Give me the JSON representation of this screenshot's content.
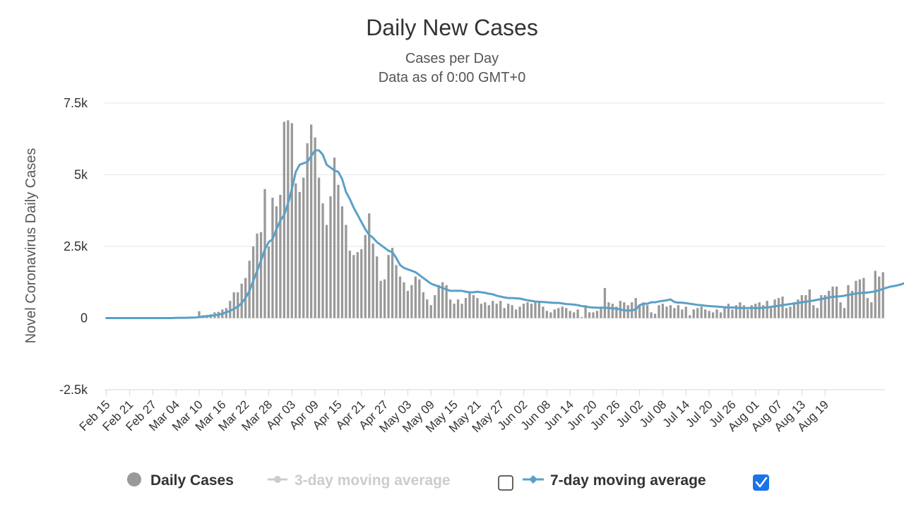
{
  "chart_data": {
    "type": "bar",
    "title": "Daily New Cases",
    "subtitle_lines": [
      "Cases per Day",
      "Data as of 0:00 GMT+0"
    ],
    "ylabel": "Novel Coronavirus Daily Cases",
    "xlabel": "",
    "ylim": [
      -2500,
      7500
    ],
    "yticks": [
      {
        "value": 7500,
        "label": "7.5k"
      },
      {
        "value": 5000,
        "label": "5k"
      },
      {
        "value": 2500,
        "label": "2.5k"
      },
      {
        "value": 0,
        "label": "0"
      },
      {
        "value": -2500,
        "label": "-2.5k"
      }
    ],
    "x_tick_labels": [
      "Feb 15",
      "Feb 21",
      "Feb 27",
      "Mar 04",
      "Mar 10",
      "Mar 16",
      "Mar 22",
      "Mar 28",
      "Apr 03",
      "Apr 09",
      "Apr 15",
      "Apr 21",
      "Apr 27",
      "May 03",
      "May 09",
      "May 15",
      "May 21",
      "May 27",
      "Jun 02",
      "Jun 08",
      "Jun 14",
      "Jun 20",
      "Jun 26",
      "Jul 02",
      "Jul 08",
      "Jul 14",
      "Jul 20",
      "Jul 26",
      "Aug 01",
      "Aug 07",
      "Aug 13",
      "Aug 19"
    ],
    "grid": true,
    "legend_position": "bottom",
    "series": [
      {
        "name": "Daily Cases",
        "kind": "bar",
        "color": "#999999",
        "start_date": "Feb 15",
        "values": [
          0,
          0,
          0,
          0,
          0,
          0,
          0,
          0,
          0,
          0,
          0,
          0,
          0,
          0,
          0,
          0,
          0,
          0,
          10,
          15,
          20,
          25,
          40,
          50,
          240,
          100,
          110,
          130,
          200,
          220,
          300,
          350,
          600,
          900,
          900,
          1200,
          1400,
          2000,
          2500,
          2950,
          3000,
          4500,
          2500,
          4200,
          3900,
          4300,
          6850,
          6900,
          6800,
          4700,
          4400,
          4900,
          6100,
          6750,
          6300,
          4900,
          4000,
          3250,
          4250,
          5600,
          4650,
          3900,
          3250,
          2350,
          2200,
          2300,
          2400,
          2900,
          3650,
          2600,
          2150,
          1300,
          1350,
          2200,
          2450,
          1850,
          1450,
          1250,
          950,
          1150,
          1450,
          1350,
          900,
          650,
          450,
          800,
          1150,
          1250,
          1150,
          650,
          500,
          650,
          500,
          700,
          900,
          800,
          700,
          500,
          550,
          450,
          600,
          500,
          600,
          350,
          500,
          450,
          300,
          400,
          500,
          550,
          500,
          600,
          550,
          400,
          250,
          200,
          300,
          350,
          400,
          350,
          250,
          200,
          300,
          30,
          450,
          200,
          200,
          250,
          400,
          1050,
          550,
          500,
          400,
          600,
          550,
          450,
          550,
          700,
          450,
          550,
          450,
          200,
          150,
          450,
          500,
          400,
          450,
          350,
          450,
          300,
          400,
          100,
          300,
          350,
          400,
          300,
          250,
          200,
          300,
          200,
          350,
          500,
          300,
          450,
          550,
          450,
          300,
          450,
          500,
          550,
          450,
          600,
          350,
          650,
          700,
          750,
          350,
          400,
          550,
          650,
          800,
          800,
          1000,
          450,
          350,
          800,
          800,
          950,
          1100,
          1100,
          550,
          350,
          1150,
          950,
          1300,
          1350,
          1400,
          700,
          550,
          1650,
          1450,
          1600
        ]
      },
      {
        "name": "3-day moving average",
        "kind": "line",
        "color": "#cccccc",
        "visible": false
      },
      {
        "name": "7-day moving average",
        "kind": "line",
        "color": "#5aa0c8",
        "visible": true,
        "start_date": "Feb 15",
        "values": [
          0,
          0,
          0,
          0,
          0,
          0,
          0,
          0,
          0,
          0,
          0,
          0,
          0,
          0,
          0,
          0,
          0,
          0,
          5,
          8,
          10,
          12,
          15,
          20,
          35,
          50,
          65,
          80,
          100,
          120,
          150,
          200,
          250,
          320,
          400,
          520,
          700,
          950,
          1300,
          1650,
          2000,
          2400,
          2650,
          2750,
          3100,
          3400,
          3600,
          4000,
          4500,
          5100,
          5350,
          5400,
          5450,
          5650,
          5850,
          5850,
          5700,
          5350,
          5250,
          5150,
          5100,
          4850,
          4400,
          4150,
          3850,
          3600,
          3350,
          3100,
          2900,
          2800,
          2650,
          2550,
          2450,
          2350,
          2300,
          2100,
          1850,
          1750,
          1700,
          1650,
          1600,
          1500,
          1400,
          1300,
          1200,
          1150,
          1100,
          1050,
          1000,
          950,
          950,
          950,
          950,
          920,
          900,
          900,
          920,
          900,
          880,
          850,
          830,
          780,
          750,
          720,
          700,
          700,
          690,
          680,
          650,
          620,
          600,
          580,
          570,
          560,
          550,
          540,
          530,
          530,
          510,
          490,
          480,
          470,
          450,
          420,
          400,
          380,
          370,
          360,
          360,
          360,
          350,
          340,
          330,
          300,
          270,
          260,
          270,
          300,
          450,
          500,
          500,
          550,
          550,
          580,
          600,
          620,
          650,
          560,
          540,
          540,
          520,
          500,
          480,
          460,
          450,
          430,
          420,
          410,
          400,
          390,
          380,
          370,
          370,
          360,
          350,
          350,
          350,
          350,
          350,
          350,
          360,
          370,
          390,
          410,
          430,
          450,
          470,
          490,
          510,
          530,
          550,
          570,
          590,
          610,
          640,
          660,
          690,
          720,
          740,
          750,
          760,
          780,
          810,
          830,
          860,
          870,
          880,
          890,
          910,
          930,
          970,
          1020,
          1060,
          1100,
          1120,
          1150,
          1190,
          1250,
          1300
        ]
      }
    ]
  },
  "legend": {
    "items": [
      {
        "label": "Daily Cases",
        "color": "#999999",
        "active": true
      },
      {
        "label": "3-day moving average",
        "color": "#cccccc",
        "active": false,
        "checkbox_checked": false
      },
      {
        "label": "7-day moving average",
        "color": "#5aa0c8",
        "active": true,
        "checkbox_checked": true
      }
    ]
  }
}
